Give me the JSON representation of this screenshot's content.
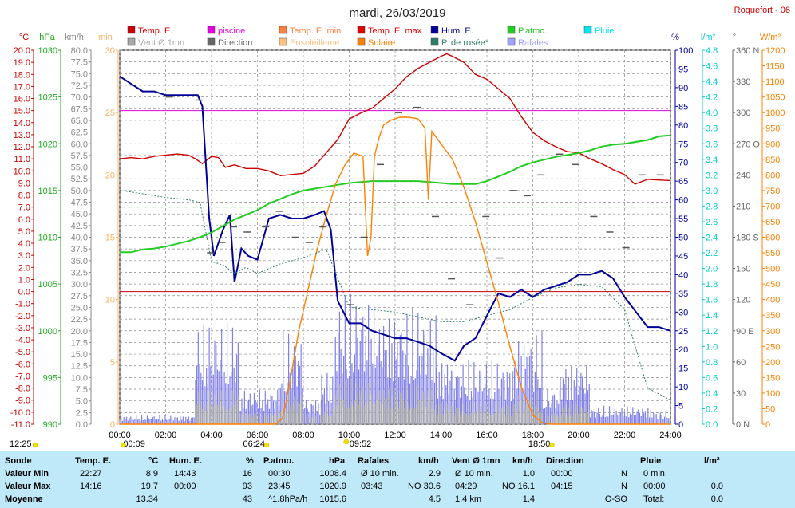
{
  "header": {
    "title": "mardi, 26/03/2019",
    "station": "Roquefort - 06"
  },
  "legend": [
    {
      "label": "Temp. E.",
      "color": "#cc0000"
    },
    {
      "label": "piscine",
      "color": "#e000e0"
    },
    {
      "label": "Temp. E. min",
      "color": "#ff7f3f"
    },
    {
      "label": "Temp. E. max",
      "color": "#e00000"
    },
    {
      "label": "Hum. E.",
      "color": "#000099"
    },
    {
      "label": "P.atmo.",
      "color": "#22cc22"
    },
    {
      "label": "Pluie",
      "color": "#00e5ee"
    },
    {
      "label": "Vent Ø 1mn",
      "color": "#a8a8a8"
    },
    {
      "label": "Direction",
      "color": "#666666"
    },
    {
      "label": "Ensoleilleme",
      "color": "#ffc080"
    },
    {
      "label": "Solaire",
      "color": "#ff8000"
    },
    {
      "label": "P. de rosée*",
      "color": "#2e7d6a"
    },
    {
      "label": "Rafales",
      "color": "#a0a0ff"
    }
  ],
  "colors": {
    "temp": "#cc0000",
    "hum": "#000099",
    "press": "#22cc22",
    "rain": "#00cccc",
    "solar": "#ff8000",
    "wind": "#8080e8",
    "windavg": "#a8a8a8",
    "dewpoint": "#2e7d6a",
    "tempaxis": "#cc0000",
    "pressaxis": "#22aa22",
    "windaxis": "#888888",
    "minaxis": "#ffb060",
    "humaxis": "#000099",
    "rainaxis": "#00cccc",
    "diraxis": "#666666",
    "solaraxis": "#ff8000",
    "statsbg": "#bfe8f8",
    "pool": "#e000e0"
  },
  "axes": {
    "temp_unit": "°C",
    "press_unit": "hPa",
    "wind_unit": "km/h",
    "min_unit": "min",
    "hum_unit": "%",
    "rain_unit": "l/m²",
    "dir_unit": "°",
    "solar_unit": "W/m²",
    "temp_ticks": [
      "20.0",
      "19.0",
      "18.0",
      "17.0",
      "16.0",
      "15.0",
      "14.0",
      "13.0",
      "12.0",
      "11.0",
      "10.0",
      "9.0",
      "8.0",
      "7.0",
      "6.0",
      "5.0",
      "4.0",
      "3.0",
      "2.0",
      "1.0",
      "0.0",
      "-1.0",
      "-2.0",
      "-3.0",
      "-4.0",
      "-5.0",
      "-6.0",
      "-7.0",
      "-8.0",
      "-9.0",
      "-10.0",
      "-11.0"
    ],
    "press_ticks": [
      "1030",
      "1025",
      "1020",
      "1015",
      "1010",
      "1005",
      "1000",
      "995",
      "990"
    ],
    "wind_ticks": [
      "80.0",
      "77.5",
      "75.0",
      "72.5",
      "70.0",
      "67.5",
      "65.0",
      "62.5",
      "60.0",
      "57.5",
      "55.0",
      "52.5",
      "50.0",
      "47.5",
      "45.0",
      "42.5",
      "40.0",
      "37.5",
      "35.0",
      "32.5",
      "30.0",
      "27.5",
      "25.0",
      "22.5",
      "20.0",
      "17.5",
      "15.0",
      "12.5",
      "10.0",
      "7.5",
      "5.0",
      "2.5",
      "0.0"
    ],
    "min_ticks": [
      "30",
      "25",
      "20",
      "15",
      "10",
      "5",
      "0"
    ],
    "hum_ticks": [
      "100",
      "95",
      "90",
      "85",
      "80",
      "75",
      "70",
      "65",
      "60",
      "55",
      "50",
      "45",
      "40",
      "35",
      "30",
      "25",
      "20",
      "15",
      "10",
      "5",
      "0"
    ],
    "rain_ticks": [
      "4.8",
      "4.6",
      "4.4",
      "4.2",
      "4.0",
      "3.8",
      "3.6",
      "3.4",
      "3.2",
      "3.0",
      "2.8",
      "2.6",
      "2.4",
      "2.2",
      "2.0",
      "1.8",
      "1.6",
      "1.4",
      "1.2",
      "1.0",
      "0.8",
      "0.6",
      "0.4",
      "0.2",
      "0.0"
    ],
    "dir_ticks": [
      "360 N",
      "330",
      "300",
      "270 O",
      "240",
      "210",
      "180 S",
      "150",
      "120",
      "90 E",
      "60",
      "30",
      "0 N"
    ],
    "solar_ticks": [
      "1200",
      "1150",
      "1100",
      "1050",
      "1000",
      "950",
      "900",
      "850",
      "800",
      "750",
      "700",
      "650",
      "600",
      "550",
      "500",
      "450",
      "400",
      "350",
      "300",
      "250",
      "200",
      "150",
      "100",
      "50",
      "0"
    ],
    "x_ticks": [
      "00:00",
      "02:00",
      "04:00",
      "06:00",
      "08:00",
      "10:00",
      "12:00",
      "14:00",
      "16:00",
      "18:00",
      "20:00",
      "22:00",
      "24:00"
    ]
  },
  "sun_markers": {
    "moon_set": "12:25",
    "moon_rise": "00:09",
    "sunrise": "06:24",
    "noon": "09:52",
    "sunset": "18:50"
  },
  "chart_data": {
    "type": "line",
    "x_range": [
      "00:00",
      "24:00"
    ],
    "grid": true,
    "series": [
      {
        "name": "Temp. E.",
        "axis": "°C",
        "x": [
          0,
          0.5,
          1,
          1.5,
          2,
          2.5,
          3,
          3.3,
          3.6,
          4,
          4.3,
          4.6,
          5,
          5.5,
          6,
          6.5,
          7,
          7.5,
          8,
          8.5,
          9,
          9.5,
          10,
          10.5,
          11,
          11.5,
          12,
          12.5,
          13,
          13.5,
          14,
          14.25,
          14.5,
          15,
          15.5,
          16,
          16.5,
          17,
          17.5,
          18,
          18.5,
          19,
          19.5,
          20,
          20.5,
          21,
          21.5,
          22,
          22.45,
          23,
          24
        ],
        "y": [
          11.0,
          11.1,
          11.0,
          11.2,
          11.3,
          11.4,
          11.3,
          11.0,
          10.6,
          11.2,
          11.1,
          10.3,
          10.5,
          10.2,
          10.2,
          10.0,
          9.6,
          9.7,
          9.8,
          10.4,
          11.5,
          12.6,
          14.3,
          14.8,
          15.2,
          16.0,
          16.8,
          17.8,
          18.5,
          19.0,
          19.5,
          19.7,
          19.5,
          19.0,
          18.0,
          17.6,
          16.8,
          16.0,
          14.5,
          13.2,
          12.5,
          12.0,
          11.6,
          11.5,
          11.0,
          10.6,
          10.1,
          9.7,
          8.9,
          9.3,
          9.2
        ]
      },
      {
        "name": "Hum. E.",
        "axis": "%",
        "x": [
          0,
          0.5,
          1,
          1.5,
          2,
          2.5,
          3,
          3.4,
          3.6,
          3.9,
          4.1,
          4.5,
          4.8,
          5.0,
          5.3,
          5.6,
          6,
          6.5,
          7,
          7.5,
          8,
          8.5,
          8.9,
          9.2,
          9.5,
          10,
          10.5,
          11,
          11.5,
          12,
          12.5,
          13,
          13.5,
          14,
          14.6,
          15,
          15.5,
          16,
          16.5,
          17,
          17.5,
          18,
          18.5,
          19,
          19.5,
          20,
          20.5,
          21,
          21.5,
          22,
          22.5,
          23,
          23.5,
          24
        ],
        "y": [
          93,
          91,
          89,
          89,
          88,
          88,
          88,
          88,
          85,
          55,
          45,
          52,
          56,
          38,
          47,
          45,
          44,
          55,
          56,
          55,
          55,
          56,
          57,
          52,
          33,
          27,
          27,
          25,
          24,
          23,
          23,
          22,
          21,
          19,
          17,
          21,
          23,
          29,
          35,
          34,
          36,
          34,
          36,
          37,
          38,
          40,
          40,
          41,
          39,
          34,
          30,
          26,
          26,
          25
        ]
      },
      {
        "name": "P.atmo.",
        "axis": "hPa",
        "x": [
          0,
          0.5,
          1,
          1.5,
          2,
          2.5,
          3,
          3.5,
          4,
          4.5,
          5,
          5.5,
          6,
          6.5,
          7,
          7.5,
          8,
          8.5,
          9,
          9.5,
          10,
          10.5,
          11,
          11.5,
          12,
          12.5,
          13,
          13.5,
          14,
          14.5,
          15,
          15.5,
          16,
          16.5,
          17,
          17.5,
          18,
          18.5,
          19,
          19.5,
          20,
          20.5,
          21,
          21.5,
          22,
          22.5,
          23,
          23.5,
          24
        ],
        "y": [
          1008.4,
          1008.4,
          1008.7,
          1008.8,
          1009.0,
          1009.3,
          1009.6,
          1010.0,
          1010.5,
          1011.2,
          1011.9,
          1012.4,
          1012.9,
          1013.6,
          1014.1,
          1014.6,
          1015.0,
          1015.2,
          1015.4,
          1015.6,
          1015.8,
          1015.9,
          1016.0,
          1016.0,
          1016.0,
          1016.0,
          1016.0,
          1015.9,
          1015.8,
          1015.7,
          1015.7,
          1015.7,
          1016.0,
          1016.5,
          1017.0,
          1017.6,
          1018.0,
          1018.3,
          1018.6,
          1018.8,
          1019.0,
          1019.3,
          1019.7,
          1019.9,
          1020.0,
          1020.2,
          1020.4,
          1020.8,
          1020.9
        ]
      },
      {
        "name": "Solaire",
        "axis": "W/m²",
        "x": [
          0,
          6.8,
          7.1,
          7.4,
          7.8,
          8.2,
          8.6,
          9.0,
          9.4,
          9.8,
          10.2,
          10.6,
          10.8,
          10.95,
          11.1,
          11.3,
          11.5,
          11.8,
          12.2,
          12.6,
          13.0,
          13.3,
          13.45,
          13.6,
          14.0,
          14.5,
          15.0,
          15.5,
          16.0,
          16.5,
          17.0,
          17.5,
          18.0,
          18.4,
          18.8,
          24
        ],
        "y": [
          0,
          0,
          20,
          130,
          300,
          430,
          560,
          670,
          770,
          830,
          870,
          860,
          540,
          600,
          860,
          920,
          960,
          975,
          985,
          985,
          980,
          950,
          720,
          940,
          900,
          850,
          760,
          650,
          520,
          390,
          250,
          120,
          30,
          5,
          0,
          0
        ]
      },
      {
        "name": "P. de rosée*",
        "axis": "°C",
        "x": [
          0,
          1,
          2,
          3,
          3.5,
          4,
          4.5,
          5,
          5.5,
          6,
          7,
          8,
          9,
          10,
          11,
          12,
          13,
          14,
          15,
          16,
          17,
          18,
          19,
          20,
          21,
          22,
          22.5,
          23,
          24
        ],
        "y": [
          8.4,
          8.1,
          7.8,
          7.6,
          7.4,
          2.5,
          2.2,
          1.5,
          2.0,
          1.5,
          2.3,
          2.8,
          3.5,
          -1.3,
          -1.5,
          -1.7,
          -2.1,
          -2.5,
          -2.5,
          -2.0,
          -1.5,
          -0.5,
          0.3,
          0.6,
          0.4,
          -1.5,
          -4.8,
          -8.0,
          -9.0
        ]
      },
      {
        "name": "Direction",
        "axis": "°",
        "x": [
          2,
          3.3,
          3.8,
          4.3,
          4.8,
          5.4,
          6.2,
          6.8,
          7.5,
          8.1,
          8.7,
          9.3,
          9.9,
          10.5,
          11.2,
          12,
          12.8,
          13.6,
          14.3,
          15.1,
          15.8,
          16.4,
          17,
          17.6,
          18.2,
          19,
          19.7,
          20.5,
          21.2,
          21.9,
          22.6,
          23.4
        ],
        "y": [
          315,
          312,
          165,
          175,
          190,
          185,
          190,
          205,
          180,
          175,
          190,
          270,
          115,
          180,
          250,
          300,
          305,
          200,
          140,
          115,
          200,
          160,
          225,
          220,
          240,
          260,
          250,
          200,
          185,
          170,
          240,
          240
        ]
      }
    ],
    "gusts": {
      "name": "Rafales",
      "axis": "km/h",
      "x_range": [
        0,
        24
      ],
      "segments": [
        [
          0,
          3.3,
          2
        ],
        [
          3.3,
          5.2,
          22
        ],
        [
          5.2,
          7.0,
          8
        ],
        [
          7.0,
          8.0,
          20
        ],
        [
          8.0,
          8.8,
          6
        ],
        [
          8.8,
          9.4,
          12
        ],
        [
          9.4,
          11.2,
          28
        ],
        [
          11.2,
          13.8,
          25
        ],
        [
          13.8,
          14.6,
          15
        ],
        [
          14.6,
          17.2,
          14
        ],
        [
          17.2,
          18.4,
          20
        ],
        [
          18.4,
          19.2,
          8
        ],
        [
          19.2,
          20.5,
          14
        ],
        [
          20.5,
          23.2,
          4
        ],
        [
          23.2,
          24,
          3
        ]
      ]
    },
    "pool_temp": 15.0,
    "reference_temp": 7.0,
    "reference_temp_zero": 0.0,
    "axis_ranges": {
      "temp": [
        -11,
        20
      ],
      "press": [
        990,
        1030
      ],
      "wind": [
        0,
        80
      ],
      "min": [
        0,
        30
      ],
      "hum": [
        0,
        100
      ],
      "rain": [
        0,
        5
      ],
      "dir": [
        0,
        360
      ],
      "solar": [
        0,
        1200
      ]
    }
  },
  "stats": {
    "headers": {
      "sonde": "Sonde",
      "temp": "Temp. E.",
      "temp_unit": "°C",
      "hum": "Hum. E.",
      "hum_unit": "%",
      "press": "P.atmo.",
      "press_unit": "hPa",
      "gust": "Rafales",
      "gust_unit": "km/h",
      "wind": "Vent Ø 1mn",
      "wind_unit": "km/h",
      "dir": "Direction",
      "rain": "Pluie",
      "rain_unit": "l/m²"
    },
    "rows": [
      {
        "label": "Valeur Min",
        "temp_time": "22:27",
        "temp_val": "8.9",
        "hum_time": "14:43",
        "hum_val": "16",
        "press_time": "00:30",
        "press_val": "1008.4",
        "gust_time": "Ø 10 min.",
        "gust_val": "2.9",
        "wind_time": "Ø 10 min.",
        "wind_val": "1.0",
        "dir_time": "00:00",
        "dir_val": "N",
        "rain_time": "0 min.",
        "rain_val": ""
      },
      {
        "label": "Valeur Max",
        "temp_time": "14:16",
        "temp_val": "19.7",
        "hum_time": "00:00",
        "hum_val": "93",
        "press_time": "23:45",
        "press_val": "1020.9",
        "gust_time": "03:43",
        "gust_val": "NO 30.6",
        "wind_time": "04:29",
        "wind_val": "NO 16.1",
        "dir_time": "04:15",
        "dir_val": "N",
        "rain_time": "00:00",
        "rain_val": "0.0"
      },
      {
        "label": "Moyenne",
        "temp_time": "",
        "temp_val": "13.34",
        "hum_time": "",
        "hum_val": "43",
        "press_time": "^1.8hPa/h",
        "press_val": "1015.6",
        "gust_time": "",
        "gust_val": "4.5",
        "wind_time": "1.4 km",
        "wind_val": "1.4",
        "dir_time": "",
        "dir_val": "O-SO",
        "rain_time": "Total:",
        "rain_val": "0.0"
      }
    ]
  }
}
